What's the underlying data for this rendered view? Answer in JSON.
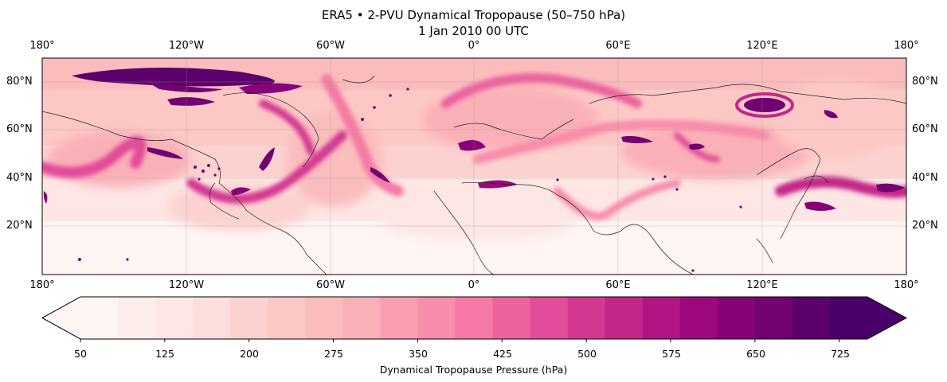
{
  "title_line1": "ERA5 • 2-PVU Dynamical Tropopause (50–750 hPa)",
  "title_line2": "1 Jan 2010 00 UTC",
  "lon_labels": [
    "180°",
    "120°W",
    "60°W",
    "0°",
    "60°E",
    "120°E",
    "180°"
  ],
  "lat_labels": [
    "80°N",
    "60°N",
    "40°N",
    "20°N"
  ],
  "colorbar": {
    "label": "Dynamical Tropopause Pressure (hPa)",
    "ticks": [
      "50",
      "125",
      "200",
      "275",
      "350",
      "425",
      "500",
      "575",
      "650",
      "725"
    ],
    "range": [
      50,
      750
    ],
    "extend": "both",
    "colors": [
      "#fff5f3",
      "#fdeeec",
      "#fde6e4",
      "#fcdedc",
      "#fcd2d0",
      "#fcc8c5",
      "#fbbcbd",
      "#fab0b7",
      "#f99fb1",
      "#f88cab",
      "#f57aa5",
      "#ec629f",
      "#e24c99",
      "#d43892",
      "#c4268a",
      "#b11583",
      "#9d087d",
      "#880277",
      "#720171",
      "#5c016b",
      "#49006a"
    ]
  },
  "map": {
    "projection": "PlateCarree",
    "extent": {
      "lon": [
        -180,
        180
      ],
      "lat": [
        0,
        90
      ]
    },
    "colormap": "RdPu",
    "gridlines": true,
    "coastlines": true
  }
}
